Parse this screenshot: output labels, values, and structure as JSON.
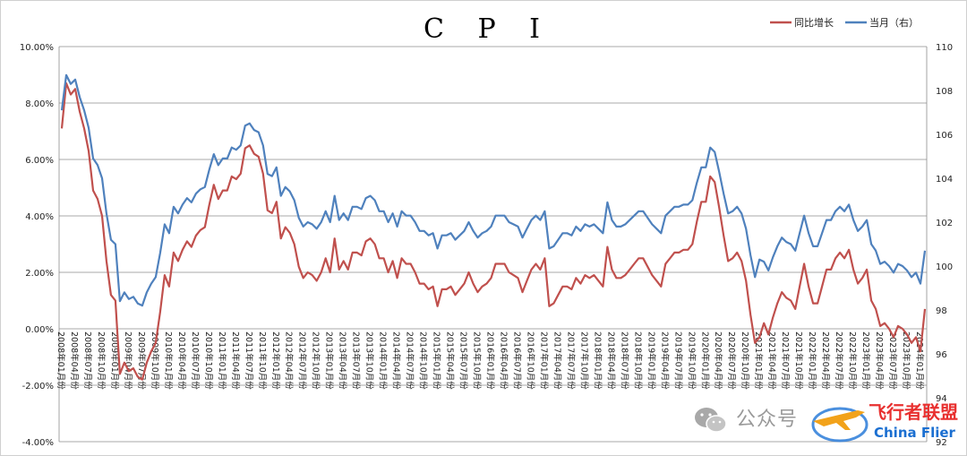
{
  "chart_data": {
    "type": "line",
    "title": "C P I",
    "legend": [
      "同比增长",
      "当月（右）"
    ],
    "legend_position": "top-right",
    "grid": true,
    "y_left": {
      "ylim": [
        -4,
        10
      ],
      "ticks": [
        "10.00%",
        "8.00%",
        "6.00%",
        "4.00%",
        "2.00%",
        "0.00%",
        "-2.00%",
        "-4.00%"
      ]
    },
    "y_right": {
      "ylim": [
        92,
        110
      ],
      "ticks": [
        "110",
        "108",
        "106",
        "104",
        "102",
        "100",
        "98",
        "96",
        "94",
        "92"
      ]
    },
    "x_start": "2008-01",
    "x_labels": [
      "2008年01月份",
      "2008年04月份",
      "2008年07月份",
      "2008年10月份",
      "2009年01月份",
      "2009年04月份",
      "2009年07月份",
      "2009年10月份",
      "2010年01月份",
      "2010年04月份",
      "2010年07月份",
      "2010年10月份",
      "2011年01月份",
      "2011年04月份",
      "2011年07月份",
      "2011年10月份",
      "2012年01月份",
      "2012年04月份",
      "2012年07月份",
      "2012年10月份",
      "2013年01月份",
      "2013年04月份",
      "2013年07月份",
      "2013年10月份",
      "2014年01月份",
      "2014年04月份",
      "2014年07月份",
      "2014年10月份",
      "2015年01月份",
      "2015年04月份",
      "2015年07月份",
      "2015年10月份",
      "2016年01月份",
      "2016年04月份",
      "2016年07月份",
      "2016年10月份",
      "2017年01月份",
      "2017年04月份",
      "2017年07月份",
      "2017年10月份",
      "2018年01月份",
      "2018年04月份",
      "2018年07月份",
      "2018年10月份",
      "2019年01月份",
      "2019年04月份",
      "2019年07月份",
      "2019年10月份",
      "2020年01月份",
      "2020年04月份",
      "2020年07月份",
      "2020年10月份",
      "2021年01月份",
      "2021年04月份",
      "2021年07月份",
      "2021年10月份",
      "2022年01月份",
      "2022年04月份",
      "2022年07月份",
      "2022年10月份",
      "2023年01月份",
      "2023年04月份",
      "2023年07月份",
      "2023年10月份",
      "2024年01月份"
    ],
    "series": [
      {
        "name": "同比增长",
        "axis": "left",
        "color": "#c0504d",
        "values": [
          7.1,
          8.7,
          8.3,
          8.5,
          7.7,
          7.1,
          6.3,
          4.9,
          4.6,
          4.0,
          2.4,
          1.2,
          1.0,
          -1.6,
          -1.2,
          -1.5,
          -1.4,
          -1.7,
          -1.8,
          -1.2,
          -0.8,
          -0.5,
          0.6,
          1.9,
          1.5,
          2.7,
          2.4,
          2.8,
          3.1,
          2.9,
          3.3,
          3.5,
          3.6,
          4.4,
          5.1,
          4.6,
          4.9,
          4.9,
          5.4,
          5.3,
          5.5,
          6.4,
          6.5,
          6.2,
          6.1,
          5.5,
          4.2,
          4.1,
          4.5,
          3.2,
          3.6,
          3.4,
          3.0,
          2.2,
          1.8,
          2.0,
          1.9,
          1.7,
          2.0,
          2.5,
          2.0,
          3.2,
          2.1,
          2.4,
          2.1,
          2.7,
          2.7,
          2.6,
          3.1,
          3.2,
          3.0,
          2.5,
          2.5,
          2.0,
          2.4,
          1.8,
          2.5,
          2.3,
          2.3,
          2.0,
          1.6,
          1.6,
          1.4,
          1.5,
          0.8,
          1.4,
          1.4,
          1.5,
          1.2,
          1.4,
          1.6,
          2.0,
          1.6,
          1.3,
          1.5,
          1.6,
          1.8,
          2.3,
          2.3,
          2.3,
          2.0,
          1.9,
          1.8,
          1.3,
          1.7,
          2.1,
          2.3,
          2.1,
          2.5,
          0.8,
          0.9,
          1.2,
          1.5,
          1.5,
          1.4,
          1.8,
          1.6,
          1.9,
          1.8,
          1.9,
          1.7,
          1.5,
          2.9,
          2.1,
          1.8,
          1.8,
          1.9,
          2.1,
          2.3,
          2.5,
          2.5,
          2.2,
          1.9,
          1.7,
          1.5,
          2.3,
          2.5,
          2.7,
          2.7,
          2.8,
          2.8,
          3.0,
          3.8,
          4.5,
          4.5,
          5.4,
          5.2,
          4.3,
          3.3,
          2.4,
          2.5,
          2.7,
          2.4,
          1.7,
          0.5,
          -0.5,
          -0.3,
          0.2,
          -0.2,
          0.4,
          0.9,
          1.3,
          1.1,
          1.0,
          0.7,
          1.5,
          2.3,
          1.5,
          0.9,
          0.9,
          1.5,
          2.1,
          2.1,
          2.5,
          2.7,
          2.5,
          2.8,
          2.1,
          1.6,
          1.8,
          2.1,
          1.0,
          0.7,
          0.1,
          0.2,
          0.0,
          -0.3,
          0.1,
          0.0,
          -0.2,
          -0.5,
          -0.3,
          -0.8,
          0.7
        ]
      },
      {
        "name": "当月（右）",
        "axis": "right",
        "color": "#4f81bd",
        "values": [
          107.1,
          108.7,
          108.3,
          108.5,
          107.7,
          107.1,
          106.3,
          104.9,
          104.6,
          104.0,
          102.4,
          101.2,
          101.0,
          98.4,
          98.8,
          98.5,
          98.6,
          98.3,
          98.2,
          98.8,
          99.2,
          99.5,
          100.6,
          101.9,
          101.5,
          102.7,
          102.4,
          102.8,
          103.1,
          102.9,
          103.3,
          103.5,
          103.6,
          104.4,
          105.1,
          104.6,
          104.9,
          104.9,
          105.4,
          105.3,
          105.5,
          106.4,
          106.5,
          106.2,
          106.1,
          105.5,
          104.2,
          104.1,
          104.5,
          103.2,
          103.6,
          103.4,
          103.0,
          102.2,
          101.8,
          102.0,
          101.9,
          101.7,
          102.0,
          102.5,
          102.0,
          103.2,
          102.1,
          102.4,
          102.1,
          102.7,
          102.7,
          102.6,
          103.1,
          103.2,
          103.0,
          102.5,
          102.5,
          102.0,
          102.4,
          101.8,
          102.5,
          102.3,
          102.3,
          102.0,
          101.6,
          101.6,
          101.4,
          101.5,
          100.8,
          101.4,
          101.4,
          101.5,
          101.2,
          101.4,
          101.6,
          102.0,
          101.6,
          101.3,
          101.5,
          101.6,
          101.8,
          102.3,
          102.3,
          102.3,
          102.0,
          101.9,
          101.8,
          101.3,
          101.7,
          102.1,
          102.3,
          102.1,
          102.5,
          100.8,
          100.9,
          101.2,
          101.5,
          101.5,
          101.4,
          101.8,
          101.6,
          101.9,
          101.8,
          101.9,
          101.7,
          101.5,
          102.9,
          102.1,
          101.8,
          101.8,
          101.9,
          102.1,
          102.3,
          102.5,
          102.5,
          102.2,
          101.9,
          101.7,
          101.5,
          102.3,
          102.5,
          102.7,
          102.7,
          102.8,
          102.8,
          103.0,
          103.8,
          104.5,
          104.5,
          105.4,
          105.2,
          104.3,
          103.3,
          102.4,
          102.5,
          102.7,
          102.4,
          101.7,
          100.5,
          99.5,
          100.3,
          100.2,
          99.8,
          100.4,
          100.9,
          101.3,
          101.1,
          101.0,
          100.7,
          101.5,
          102.3,
          101.5,
          100.9,
          100.9,
          101.5,
          102.1,
          102.1,
          102.5,
          102.7,
          102.5,
          102.8,
          102.1,
          101.6,
          101.8,
          102.1,
          101.0,
          100.7,
          100.1,
          100.2,
          100.0,
          99.7,
          100.1,
          100.0,
          99.8,
          99.5,
          99.7,
          99.2,
          100.7
        ]
      }
    ]
  },
  "watermark": {
    "text": "公众号",
    "brand_cn": "飞行者联盟",
    "brand_en": "China Flier"
  }
}
